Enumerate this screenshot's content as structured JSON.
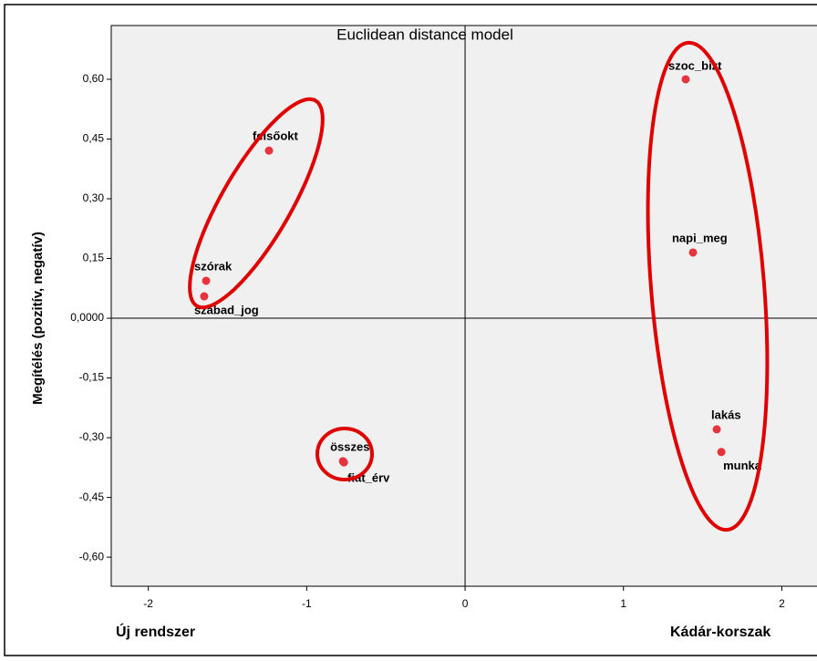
{
  "chart_data": {
    "type": "scatter",
    "title": "Euclidean distance model",
    "y_label": "Megítélés (pozitív, negatív)",
    "x_label_left": "Új rendszer",
    "x_label_right": "Kádár-korszak",
    "labels": [
      "szoc_bizt",
      "felsőokt",
      "napi_meg",
      "szórak",
      "szabad_jog",
      "lakás",
      "munka",
      "összes",
      "fiat_érv"
    ],
    "x": [
      1.393,
      -1.238,
      1.439,
      -1.635,
      -1.647,
      1.589,
      1.618,
      -0.771,
      -0.765
    ],
    "values": [
      0.6,
      0.421,
      0.165,
      0.094,
      0.055,
      -0.279,
      -0.336,
      -0.359,
      -0.362
    ],
    "color": "#e8323c",
    "xlim": [
      -2.234,
      2.222
    ],
    "ylim": [
      -0.673,
      0.735
    ],
    "xticks": [
      -2,
      -1,
      0,
      1,
      2
    ],
    "yticks": [
      {
        "value": 0.6,
        "label": "0,60"
      },
      {
        "value": 0.45,
        "label": "0,45"
      },
      {
        "value": 0.3,
        "label": "0,30"
      },
      {
        "value": 0.15,
        "label": "0,15"
      },
      {
        "value": 0,
        "label": "0,0000"
      },
      {
        "value": -0.15,
        "label": "-0,15"
      },
      {
        "value": -0.3,
        "label": "-0,30"
      },
      {
        "value": -0.45,
        "label": "-0,45"
      },
      {
        "value": -0.6,
        "label": "-0,60"
      }
    ]
  }
}
